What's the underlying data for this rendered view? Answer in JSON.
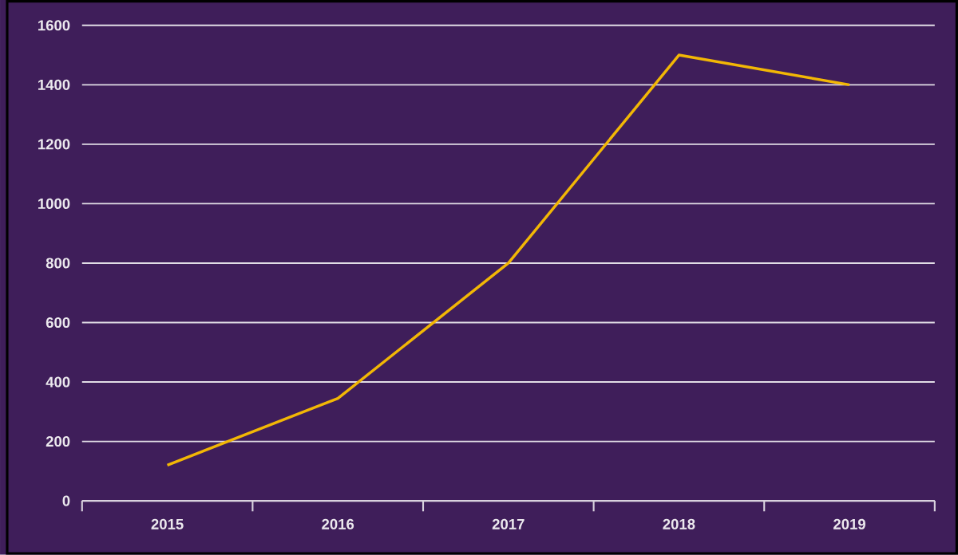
{
  "chart_data": {
    "type": "line",
    "categories": [
      "2015",
      "2016",
      "2017",
      "2018",
      "2019"
    ],
    "series": [
      {
        "color": "#f2b705",
        "values": [
          120,
          345,
          800,
          1500,
          1400
        ]
      }
    ],
    "ylim": [
      0,
      1600
    ],
    "yticks": [
      0,
      200,
      400,
      600,
      800,
      1000,
      1200,
      1400,
      1600
    ],
    "grid": "y",
    "marker": "none",
    "line_style": "solid"
  }
}
